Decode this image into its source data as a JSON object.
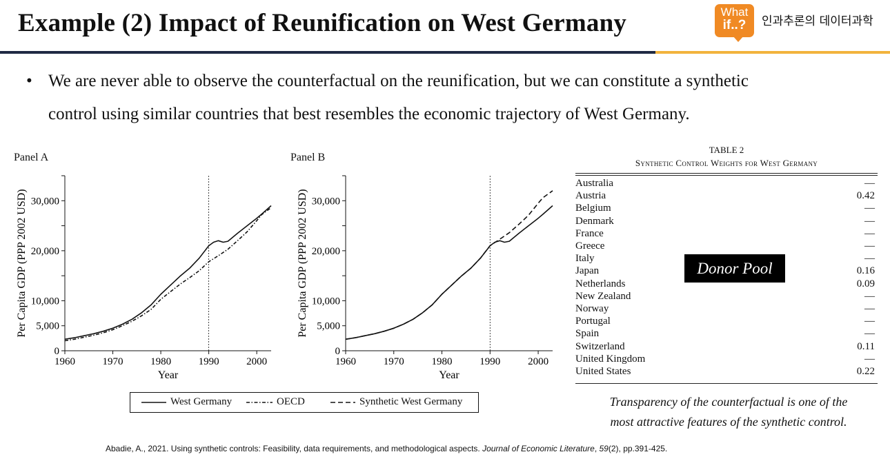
{
  "slide": {
    "title": "Example (2) Impact of Reunification on West Germany",
    "logo": {
      "line1": "What",
      "line2": "if..?",
      "brand": "인과추론의 데이터과학"
    },
    "bullet": "•",
    "bullet_line1": "We are never able to observe the counterfactual on the reunification, but we can constitute a synthetic",
    "bullet_line2": "control using similar countries that best resembles the economic trajectory of West Germany.",
    "colors": {
      "title_rule": "#1f2a44",
      "accent_rule": "#f2b33d",
      "logo_bg": "#f08a24"
    }
  },
  "panels": {
    "a_label": "Panel A",
    "b_label": "Panel B",
    "ylabel": "Per Capita GDP (PPP 2002 USD)",
    "xlabel": "Year"
  },
  "legend": {
    "west_germany": "West Germany",
    "oecd": "OECD",
    "synthetic": "Synthetic West Germany"
  },
  "chart_data": [
    {
      "type": "line",
      "panel": "Panel A",
      "xlabel": "Year",
      "ylabel": "Per Capita GDP (PPP 2002 USD)",
      "xlim": [
        1960,
        2003
      ],
      "ylim": [
        0,
        30000
      ],
      "xticks": [
        1960,
        1970,
        1980,
        1990,
        2000
      ],
      "yticks": [
        0,
        5000,
        10000,
        20000,
        30000
      ],
      "ytick_labels": [
        "0",
        "5,000",
        "10,000",
        "20,000",
        "30,000"
      ],
      "reference_line_x": 1990,
      "series": [
        {
          "name": "West Germany",
          "style": "solid",
          "x": [
            1960,
            1962,
            1964,
            1966,
            1968,
            1970,
            1972,
            1974,
            1976,
            1978,
            1980,
            1982,
            1984,
            1986,
            1988,
            1990,
            1991,
            1992,
            1993,
            1994,
            1996,
            1998,
            2000,
            2001,
            2003
          ],
          "y": [
            2300,
            2600,
            3000,
            3400,
            3900,
            4500,
            5300,
            6300,
            7600,
            9200,
            11300,
            13100,
            14900,
            16500,
            18500,
            21000,
            21700,
            22000,
            21700,
            21900,
            23500,
            25000,
            26500,
            27300,
            29000
          ]
        },
        {
          "name": "OECD",
          "style": "dash-dot",
          "x": [
            1960,
            1962,
            1964,
            1966,
            1968,
            1970,
            1972,
            1974,
            1976,
            1978,
            1980,
            1982,
            1984,
            1986,
            1988,
            1990,
            1992,
            1994,
            1996,
            1998,
            2000,
            2001,
            2003
          ],
          "y": [
            2000,
            2300,
            2700,
            3100,
            3600,
            4200,
            5000,
            5900,
            7000,
            8300,
            10300,
            11800,
            13300,
            14600,
            16000,
            17800,
            19000,
            20300,
            22000,
            23800,
            26000,
            27200,
            28600
          ]
        }
      ]
    },
    {
      "type": "line",
      "panel": "Panel B",
      "xlabel": "Year",
      "ylabel": "Per Capita GDP (PPP 2002 USD)",
      "xlim": [
        1960,
        2003
      ],
      "ylim": [
        0,
        30000
      ],
      "xticks": [
        1960,
        1970,
        1980,
        1990,
        2000
      ],
      "yticks": [
        0,
        5000,
        10000,
        20000,
        30000
      ],
      "ytick_labels": [
        "0",
        "5,000",
        "10,000",
        "20,000",
        "30,000"
      ],
      "reference_line_x": 1990,
      "series": [
        {
          "name": "West Germany",
          "style": "solid",
          "x": [
            1960,
            1962,
            1964,
            1966,
            1968,
            1970,
            1972,
            1974,
            1976,
            1978,
            1980,
            1982,
            1984,
            1986,
            1988,
            1990,
            1991,
            1992,
            1993,
            1994,
            1996,
            1998,
            2000,
            2001,
            2003
          ],
          "y": [
            2300,
            2600,
            3000,
            3400,
            3900,
            4500,
            5300,
            6300,
            7600,
            9200,
            11300,
            13100,
            14900,
            16500,
            18500,
            21000,
            21700,
            22000,
            21700,
            21900,
            23500,
            25000,
            26500,
            27300,
            29000
          ]
        },
        {
          "name": "Synthetic West Germany",
          "style": "dashed",
          "x": [
            1960,
            1962,
            1964,
            1966,
            1968,
            1970,
            1972,
            1974,
            1976,
            1978,
            1980,
            1982,
            1984,
            1986,
            1988,
            1990,
            1992,
            1994,
            1996,
            1998,
            2000,
            2001,
            2003
          ],
          "y": [
            2300,
            2600,
            3000,
            3400,
            3900,
            4500,
            5300,
            6300,
            7600,
            9200,
            11300,
            13100,
            14900,
            16500,
            18500,
            21000,
            22300,
            23600,
            25300,
            27100,
            29500,
            30600,
            32000
          ]
        }
      ]
    }
  ],
  "table": {
    "title": "TABLE 2",
    "subtitle": "Synthetic Control Weights for West Germany",
    "rows": [
      {
        "country": "Australia",
        "weight": "—"
      },
      {
        "country": "Austria",
        "weight": "0.42"
      },
      {
        "country": "Belgium",
        "weight": "—"
      },
      {
        "country": "Denmark",
        "weight": "—"
      },
      {
        "country": "France",
        "weight": "—"
      },
      {
        "country": "Greece",
        "weight": "—"
      },
      {
        "country": "Italy",
        "weight": "—"
      },
      {
        "country": "Japan",
        "weight": "0.16"
      },
      {
        "country": "Netherlands",
        "weight": "0.09"
      },
      {
        "country": "New Zealand",
        "weight": "—"
      },
      {
        "country": "Norway",
        "weight": "—"
      },
      {
        "country": "Portugal",
        "weight": "—"
      },
      {
        "country": "Spain",
        "weight": "—"
      },
      {
        "country": "Switzerland",
        "weight": "0.11"
      },
      {
        "country": "United Kingdom",
        "weight": "—"
      },
      {
        "country": "United States",
        "weight": "0.22"
      }
    ],
    "donor_label": "Donor Pool"
  },
  "note": {
    "line1": "Transparency of the counterfactual is one of the",
    "line2": "most attractive features of the synthetic control."
  },
  "citation": {
    "before": "Abadie, A., 2021. Using synthetic controls: Feasibility, data requirements, and methodological aspects. ",
    "journal": "Journal of Economic Literature",
    "sep1": ", ",
    "volume": "59",
    "rest": "(2), pp.391-425."
  }
}
